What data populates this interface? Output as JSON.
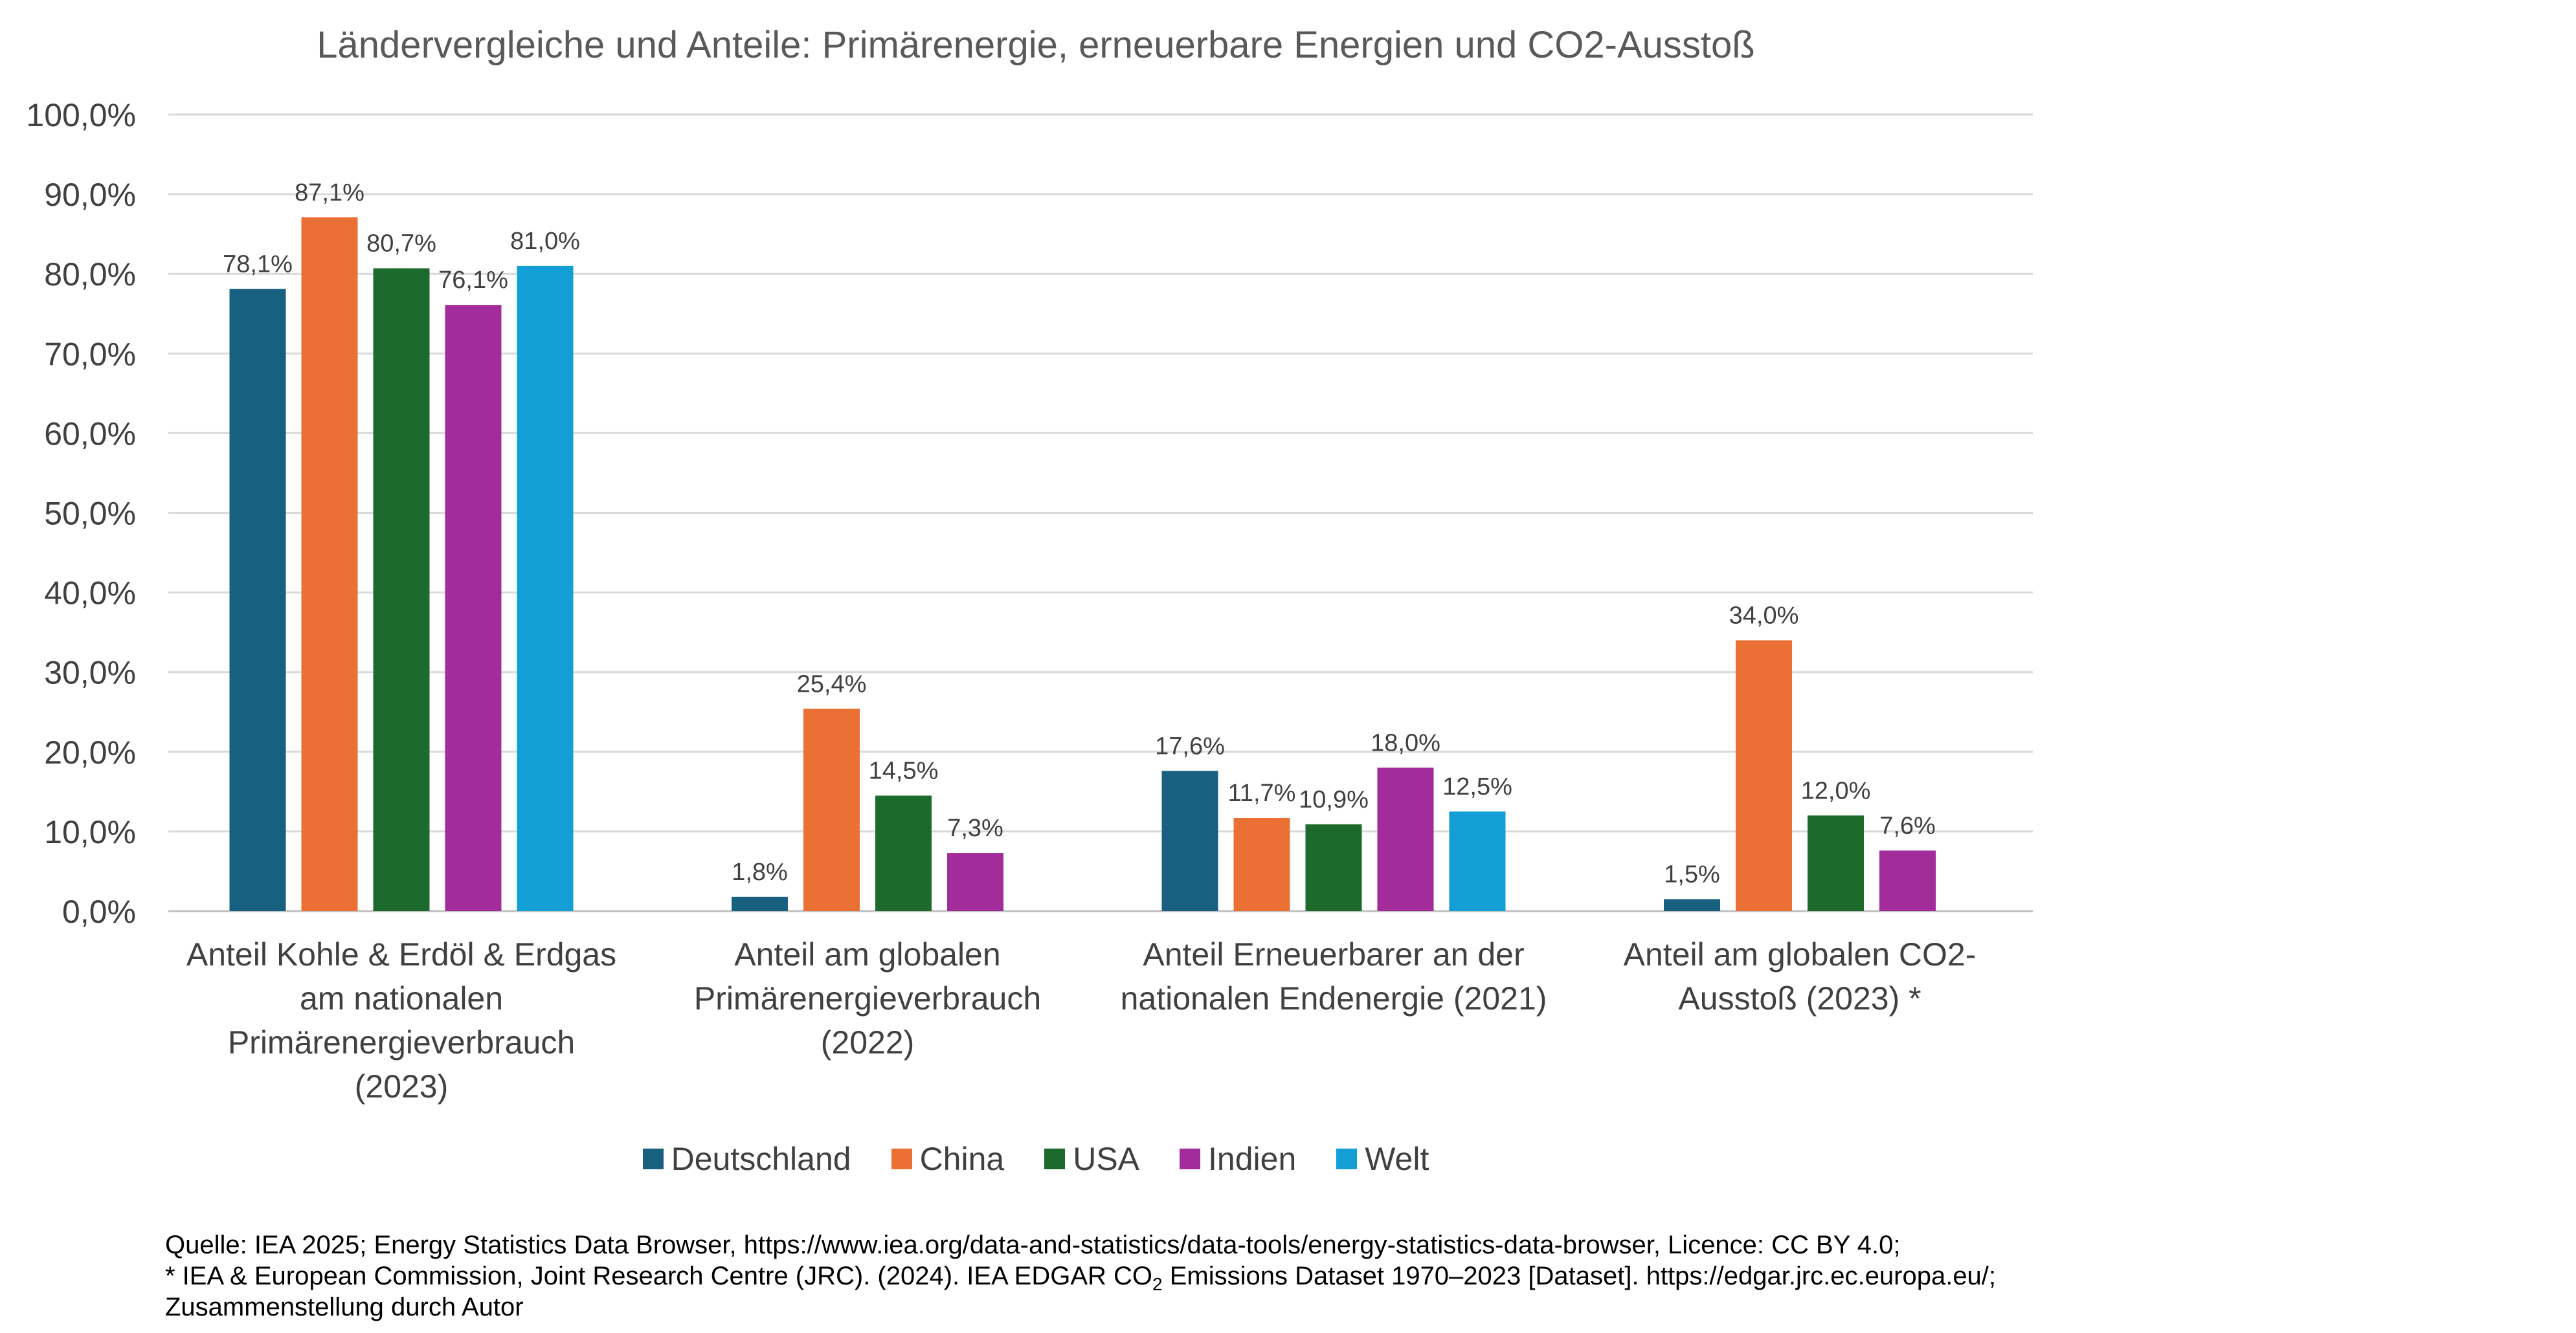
{
  "chart_data": {
    "type": "bar",
    "title": "Ländervergleiche und Anteile: Primärenergie, erneuerbare Energien und CO2-Ausstoß",
    "categories": [
      [
        "Anteil Kohle & Erdöl & Erdgas",
        "am nationalen",
        "Primärenergieverbrauch",
        "(2023)"
      ],
      [
        "Anteil am globalen",
        "Primärenergieverbrauch",
        "(2022)"
      ],
      [
        "Anteil Erneuerbarer an der",
        "nationalen Endenergie (2021)"
      ],
      [
        "Anteil am globalen CO2-",
        "Ausstoß (2023) *"
      ]
    ],
    "series": [
      {
        "name": "Deutschland",
        "color": "#17607f",
        "values": [
          78.1,
          1.8,
          17.6,
          1.5
        ],
        "labels": [
          "78,1%",
          "1,8%",
          "17,6%",
          "1,5%"
        ]
      },
      {
        "name": "China",
        "color": "#ea7133",
        "values": [
          87.1,
          25.4,
          11.7,
          34.0
        ],
        "labels": [
          "87,1%",
          "25,4%",
          "11,7%",
          "34,0%"
        ]
      },
      {
        "name": "USA",
        "color": "#1d6b2c",
        "values": [
          80.7,
          14.5,
          10.9,
          12.0
        ],
        "labels": [
          "80,7%",
          "14,5%",
          "10,9%",
          "12,0%"
        ]
      },
      {
        "name": "Indien",
        "color": "#a12c9a",
        "values": [
          76.1,
          7.3,
          18.0,
          7.6
        ],
        "labels": [
          "76,1%",
          "7,3%",
          "18,0%",
          "7,6%"
        ]
      },
      {
        "name": "Welt",
        "color": "#139fd6",
        "values": [
          81.0,
          null,
          12.5,
          null
        ],
        "labels": [
          "81,0%",
          null,
          "12,5%",
          null
        ]
      }
    ],
    "yticks": [
      "0,0%",
      "10,0%",
      "20,0%",
      "30,0%",
      "40,0%",
      "50,0%",
      "60,0%",
      "70,0%",
      "80,0%",
      "90,0%",
      "100,0%"
    ],
    "ylim": [
      0,
      100
    ],
    "grid": true,
    "legend_position": "bottom"
  },
  "source": {
    "line1": "Quelle: IEA 2025; Energy Statistics Data Browser, https://www.iea.org/data-and-statistics/data-tools/energy-statistics-data-browser, Licence: CC BY 4.0;",
    "line2_before": "* IEA & European Commission, Joint Research Centre (JRC). (2024). IEA EDGAR CO",
    "line2_sub": "2",
    "line2_after": " Emissions Dataset 1970–2023 [Dataset]. https://edgar.jrc.ec.europa.eu/;",
    "line3": "Zusammenstellung durch Autor"
  }
}
